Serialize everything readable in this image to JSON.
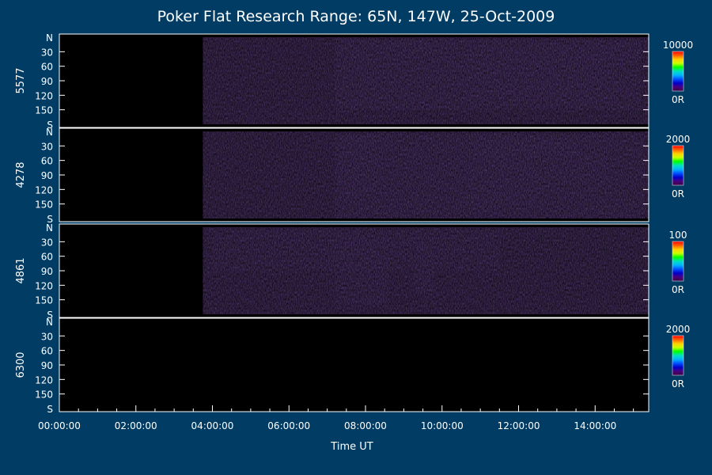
{
  "chart_data": {
    "type": "heatmap",
    "title": "Poker Flat Research Range: 65N, 147W, 25-Oct-2009",
    "xlabel": "Time UT",
    "x_ticks": [
      "00:00:00",
      "02:00:00",
      "04:00:00",
      "06:00:00",
      "08:00:00",
      "10:00:00",
      "12:00:00",
      "14:00:00"
    ],
    "x_range_hours": [
      0,
      15.4
    ],
    "y_axis": {
      "range_deg": [
        0,
        180
      ],
      "top_label": "N",
      "bottom_label": "S",
      "ticks": [
        "30",
        "60",
        "90",
        "120",
        "150"
      ]
    },
    "data_start_hours": 3.75,
    "panels": [
      {
        "name": "5577",
        "scale_max": "10000",
        "scale_min": "0R"
      },
      {
        "name": "4278",
        "scale_max": "2000",
        "scale_min": "0R"
      },
      {
        "name": "4861",
        "scale_max": "100",
        "scale_min": "0R"
      },
      {
        "name": "6300",
        "scale_max": "2000",
        "scale_min": "0R"
      }
    ]
  },
  "colors": {
    "background": "#003c64",
    "plot_background": "#000000",
    "colormap": [
      "#3a0040",
      "#4a0080",
      "#0000c8",
      "#0050ff",
      "#00b4ff",
      "#00e0c0",
      "#00ff00",
      "#c8ff00",
      "#ffd000",
      "#ff6000",
      "#ff0000"
    ]
  }
}
